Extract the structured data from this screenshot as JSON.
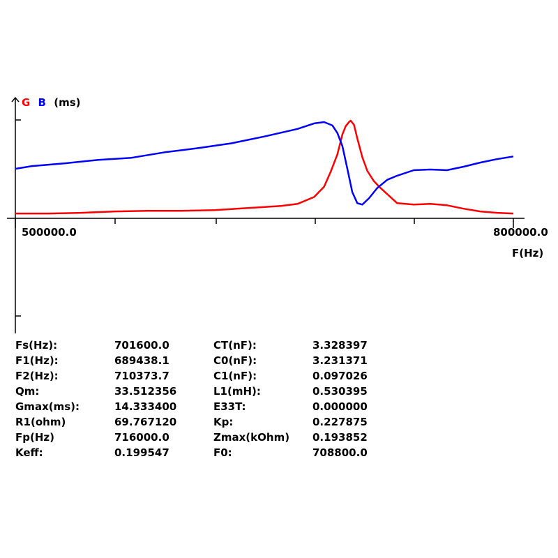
{
  "chart_data": {
    "type": "line",
    "y_title": {
      "g": "G",
      "b": "B",
      "unit": "(ms)"
    },
    "xlabel": "F(Hz)",
    "x_tick_labels": {
      "min": "500000.0",
      "max": "800000.0"
    },
    "xlim": [
      500000,
      800000
    ],
    "ylim": [
      0,
      14.3
    ],
    "grid": false,
    "series": [
      {
        "name": "G",
        "color": "#ff0000",
        "x": [
          495000,
          520000,
          540000,
          560000,
          580000,
          600000,
          620000,
          640000,
          660000,
          670000,
          680000,
          686000,
          690000,
          694000,
          697000,
          699000,
          701000,
          702000,
          704000,
          706000,
          709000,
          712000,
          716000,
          720000,
          730000,
          740000,
          750000,
          760000,
          770000,
          780000,
          790000,
          800000
        ],
        "values": [
          0.7,
          0.7,
          0.8,
          1.0,
          1.1,
          1.1,
          1.2,
          1.5,
          1.8,
          2.1,
          3.1,
          4.6,
          6.8,
          9.3,
          12.2,
          13.4,
          14.0,
          14.2,
          13.6,
          11.6,
          8.9,
          6.9,
          5.4,
          4.4,
          2.2,
          2.0,
          2.1,
          1.9,
          1.4,
          1.0,
          0.8,
          0.7
        ]
      },
      {
        "name": "B",
        "color": "#0000ff",
        "x": [
          495000,
          510000,
          530000,
          550000,
          570000,
          590000,
          610000,
          630000,
          650000,
          670000,
          680000,
          686000,
          691000,
          694000,
          697000,
          700000,
          703000,
          706000,
          709000,
          713000,
          718000,
          724000,
          730000,
          740000,
          750000,
          760000,
          770000,
          780000,
          790000,
          800000
        ],
        "values": [
          7.2,
          7.6,
          8.0,
          8.5,
          8.8,
          9.6,
          10.2,
          10.9,
          11.9,
          13.0,
          13.8,
          14.0,
          13.5,
          12.4,
          10.5,
          7.2,
          3.8,
          2.2,
          2.0,
          2.9,
          4.4,
          5.6,
          6.2,
          7.0,
          7.1,
          7.0,
          7.5,
          8.1,
          8.6,
          9.0
        ]
      }
    ]
  },
  "params": [
    [
      "Fs(Hz):",
      "701600.0",
      "CT(nF):",
      "3.328397"
    ],
    [
      "F1(Hz):",
      "689438.1",
      "C0(nF):",
      "3.231371"
    ],
    [
      "F2(Hz):",
      "710373.7",
      "C1(nF):",
      "0.097026"
    ],
    [
      "Qm:",
      "33.512356",
      "L1(mH):",
      "0.530395"
    ],
    [
      "Gmax(ms):",
      "14.333400",
      "E33T:",
      "0.000000"
    ],
    [
      "R1(ohm)",
      "69.767120",
      "Kp:",
      "0.227875"
    ],
    [
      "Fp(Hz)",
      "716000.0",
      "Zmax(kOhm)",
      "0.193852"
    ],
    [
      "Keff:",
      "0.199547",
      "F0:",
      "708800.0"
    ]
  ]
}
